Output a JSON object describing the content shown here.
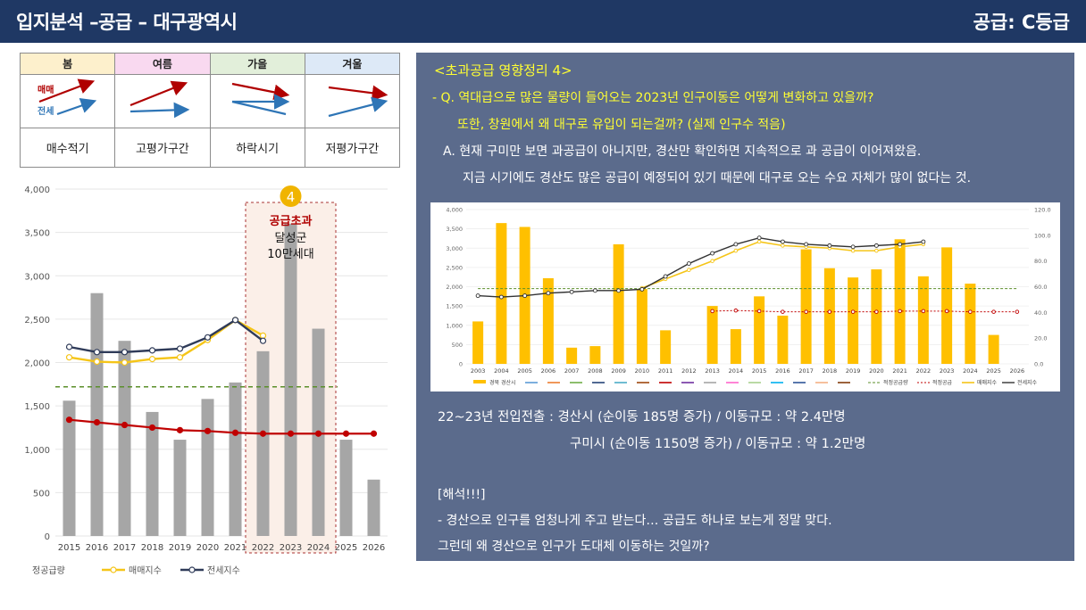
{
  "header": {
    "title": "입지분석 –공급 – 대구광역시",
    "grade": "공급: C등급"
  },
  "legend_table": {
    "seasons": [
      {
        "label": "봄",
        "bg": "#fdf0cc"
      },
      {
        "label": "여름",
        "bg": "#f9d9f0"
      },
      {
        "label": "가을",
        "bg": "#e2efda"
      },
      {
        "label": "겨울",
        "bg": "#dde9f7"
      }
    ],
    "sale_label": "매매",
    "jeonse_label": "전세",
    "descriptions": [
      "매수적기",
      "고평가구간",
      "하락시기",
      "저평가구간"
    ],
    "colors": {
      "sale": "#b00000",
      "jeonse": "#2e75b6"
    }
  },
  "left_chart_annotation": {
    "badge": "4",
    "line1": "공급초과",
    "line2": "달성군",
    "line3": "10만세대"
  },
  "chart_data": [
    {
      "type": "bar",
      "categories": [
        "2015",
        "2016",
        "2017",
        "2018",
        "2019",
        "2020",
        "2021",
        "2022",
        "2023",
        "2024",
        "2025",
        "2026"
      ],
      "ylim": [
        0,
        4000
      ],
      "yticks": [
        "0",
        "500",
        "1,000",
        "1,500",
        "2,000",
        "2,500",
        "3,000",
        "3,500",
        "4,000"
      ],
      "highlight_range": [
        "2022",
        "2024"
      ],
      "reference_line": 1720,
      "series": [
        {
          "name": "정공급량",
          "kind": "bar",
          "values": [
            1560,
            2800,
            2250,
            1430,
            1110,
            1580,
            1770,
            2130,
            3600,
            2390,
            1110,
            650
          ]
        },
        {
          "name": "매매지수",
          "kind": "line",
          "values": [
            2060,
            2010,
            2000,
            2040,
            2060,
            2260,
            2490,
            2310,
            null,
            null,
            null,
            null
          ]
        },
        {
          "name": "전세지수",
          "kind": "line",
          "values": [
            2180,
            2120,
            2120,
            2140,
            2160,
            2290,
            2490,
            2250,
            null,
            null,
            null,
            null
          ]
        },
        {
          "name": "",
          "kind": "line",
          "values": [
            1340,
            1310,
            1280,
            1250,
            1220,
            1210,
            1190,
            1180,
            1180,
            1180,
            1180,
            1180
          ]
        }
      ],
      "legend": [
        "정공급량",
        "매매지수",
        "전세지수"
      ]
    },
    {
      "type": "bar",
      "categories": [
        "2003",
        "2004",
        "2005",
        "2006",
        "2007",
        "2008",
        "2009",
        "2010",
        "2011",
        "2012",
        "2013",
        "2014",
        "2015",
        "2016",
        "2017",
        "2018",
        "2019",
        "2020",
        "2021",
        "2022",
        "2023",
        "2024",
        "2025",
        "2026"
      ],
      "ylim": [
        0,
        4000
      ],
      "y2lim": [
        0,
        120
      ],
      "yticks": [
        "0",
        "500",
        "1,000",
        "1,500",
        "2,000",
        "2,500",
        "3,000",
        "3,500",
        "4,000"
      ],
      "y2ticks": [
        "0.0",
        "20.0",
        "40.0",
        "60.0",
        "80.0",
        "100.0",
        "120.0"
      ],
      "reference_line": 1950,
      "series": [
        {
          "name": "경북 경산시",
          "kind": "bar",
          "values": [
            1100,
            3650,
            3550,
            2220,
            420,
            460,
            3100,
            1940,
            870,
            0,
            1500,
            900,
            1750,
            1250,
            2970,
            2480,
            2240,
            2450,
            3230,
            2270,
            3020,
            2080,
            750,
            0
          ]
        },
        {
          "name": "매매지수",
          "kind": "line",
          "values": [
            null,
            null,
            null,
            null,
            null,
            null,
            null,
            59,
            66,
            73,
            80,
            88,
            95,
            92,
            91,
            90,
            88,
            88,
            91,
            93,
            null,
            null,
            null,
            null
          ]
        },
        {
          "name": "전세지수",
          "kind": "line",
          "values": [
            53,
            52,
            53,
            55,
            56,
            57,
            57,
            58,
            68,
            78,
            86,
            93,
            98,
            95,
            93,
            92,
            91,
            92,
            93,
            95,
            null,
            null,
            null,
            null
          ]
        },
        {
          "name": "적정공급",
          "kind": "line",
          "values": [
            null,
            null,
            null,
            null,
            null,
            null,
            null,
            null,
            null,
            null,
            41,
            41.5,
            41,
            40.5,
            40.5,
            40.5,
            40.5,
            40.5,
            41,
            41,
            41,
            40.5,
            40.5,
            40.5
          ]
        }
      ],
      "legend": [
        "경북 경산시",
        "적정공급량",
        "적정공급",
        "매매지수",
        "전세지수"
      ]
    }
  ],
  "panel": {
    "title": "<초과공급 영향정리 4>",
    "q1": "- Q. 역대급으로 많은 물량이 들어오는 2023년 인구이동은 어떻게 변화하고 있을까?",
    "q2": "또한, 창원에서 왜 대구로 유입이 되는걸까? (실제 인구수 적음)",
    "a1": "A. 현재 구미만 보면 과공급이 아니지만, 경산만 확인하면 지속적으로 과 공급이 이어져왔음.",
    "a2": "지금 시기에도 경산도 많은 공급이 예정되어 있기 때문에 대구로 오는 수요 자체가 많이 없다는 것.",
    "stat1": "22~23년 전입전출 : 경산시 (순이동 185명 증가) / 이동규모 : 약 2.4만명",
    "stat2": "구미시 (순이동 1150명 증가) / 이동규모 : 약 1.2만명",
    "interp_title": "[해석!!!]",
    "interp1": "- 경산으로 인구를 엄청나게 주고 받는다… 공급도 하나로 보는게 정말 맞다.",
    "interp2": "그런데 왜 경산으로 인구가 도대체 이동하는 것일까?"
  }
}
